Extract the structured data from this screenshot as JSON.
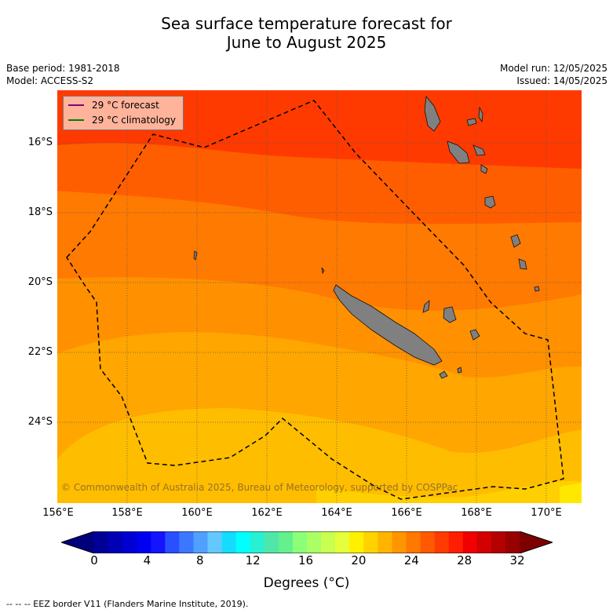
{
  "title_line1": "Sea surface temperature forecast for",
  "title_line2": "June to August 2025",
  "base_period": "Base period: 1981-2018",
  "model": "Model: ACCESS-S2",
  "model_run": "Model run: 12/05/2025",
  "issued": "Issued: 14/05/2025",
  "legend": {
    "forecast": "29 °C  forecast",
    "forecast_color": "#800080",
    "climatology": "29 °C  climatology",
    "climatology_color": "#008000"
  },
  "lat_labels": [
    "16°S",
    "18°S",
    "20°S",
    "22°S",
    "24°S"
  ],
  "lon_labels": [
    "156°E",
    "158°E",
    "160°E",
    "162°E",
    "164°E",
    "166°E",
    "168°E",
    "170°E"
  ],
  "copyright": "© Commonwealth of Australia 2025, Bureau of Meteorology, supported by COSPPac",
  "colorbar": {
    "ticks": [
      "0",
      "4",
      "8",
      "12",
      "16",
      "20",
      "24",
      "28",
      "32"
    ],
    "title": "Degrees (°C)",
    "colors": [
      "#000096",
      "#0000b4",
      "#0000d2",
      "#0000f0",
      "#1414ff",
      "#2850ff",
      "#3c78ff",
      "#50a0ff",
      "#64c8ff",
      "#14dcff",
      "#00ffff",
      "#28f0d2",
      "#50e6aa",
      "#64f08c",
      "#8cff78",
      "#aaff64",
      "#c8ff50",
      "#e6ff3c",
      "#fff000",
      "#ffd200",
      "#ffb400",
      "#ff9600",
      "#ff7800",
      "#ff5a00",
      "#ff3c00",
      "#ff1e00",
      "#f00000",
      "#d20000",
      "#b40000",
      "#960000"
    ],
    "under": "#00007d",
    "over": "#7d0000"
  },
  "footer": "--  --  -- EEZ border V11 (Flanders Marine Institute, 2019).",
  "bands": [
    {
      "range": "28-29",
      "color": "#ff3a00"
    },
    {
      "range": "27-28",
      "color": "#ff5e00"
    },
    {
      "range": "26-27",
      "color": "#ff7a00"
    },
    {
      "range": "25-26",
      "color": "#ff9100"
    },
    {
      "range": "24-25",
      "color": "#ffa600"
    },
    {
      "range": "23-24",
      "color": "#ffbd00"
    },
    {
      "range": "22-23",
      "color": "#ffcf00"
    },
    {
      "range": "21-22",
      "color": "#ffe800"
    }
  ]
}
